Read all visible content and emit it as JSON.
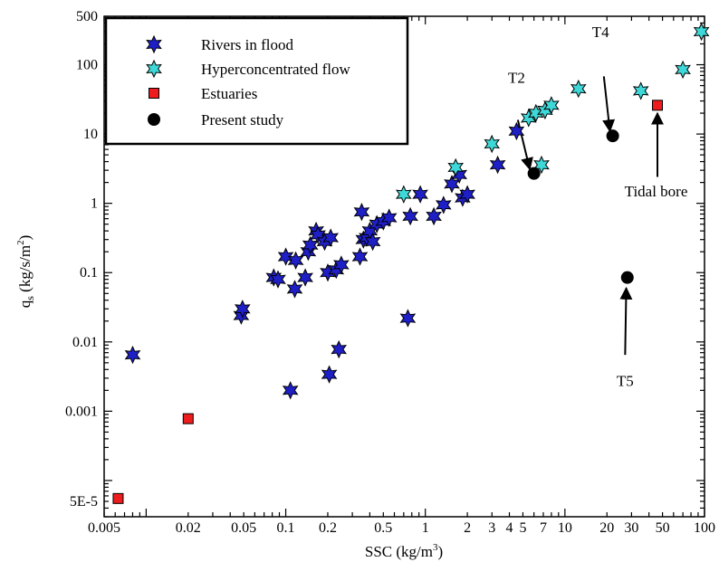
{
  "chart_data": {
    "type": "scatter",
    "x_scale": "log",
    "y_scale": "log",
    "xlim": [
      0.005,
      100
    ],
    "ylim": [
      3e-05,
      500
    ],
    "xlabel": "SSC (kg/m3)",
    "xlabel_main": "SSC (kg/m",
    "xlabel_sup": "3",
    "xlabel_end": ")",
    "ylabel_main": "q",
    "ylabel_sub": "s",
    "ylabel_mid": " (kg/s/m",
    "ylabel_sup": "2",
    "ylabel_end": ")",
    "x_ticks": [
      {
        "v": 0.005,
        "label": "0.005"
      },
      {
        "v": 0.02,
        "label": "0.02"
      },
      {
        "v": 0.05,
        "label": "0.05"
      },
      {
        "v": 0.1,
        "label": "0.1"
      },
      {
        "v": 0.2,
        "label": "0.2"
      },
      {
        "v": 0.5,
        "label": "0.5"
      },
      {
        "v": 1,
        "label": "1"
      },
      {
        "v": 2,
        "label": "2"
      },
      {
        "v": 3,
        "label": "3"
      },
      {
        "v": 4,
        "label": "4"
      },
      {
        "v": 5,
        "label": "5"
      },
      {
        "v": 7,
        "label": "7"
      },
      {
        "v": 10,
        "label": "10"
      },
      {
        "v": 20,
        "label": "20"
      },
      {
        "v": 30,
        "label": "30"
      },
      {
        "v": 50,
        "label": "50"
      },
      {
        "v": 100,
        "label": "100"
      }
    ],
    "y_ticks": [
      {
        "v": 5e-05,
        "label": "5E-5"
      },
      {
        "v": 0.001,
        "label": "0.001"
      },
      {
        "v": 0.01,
        "label": "0.01"
      },
      {
        "v": 0.1,
        "label": "0.1"
      },
      {
        "v": 1,
        "label": "1"
      },
      {
        "v": 10,
        "label": "10"
      },
      {
        "v": 100,
        "label": "100"
      },
      {
        "v": 500,
        "label": "500"
      }
    ],
    "legend_position": "top-left",
    "series": [
      {
        "name": "Rivers in flood",
        "marker": "star",
        "color": "#1f1fc8",
        "points": [
          [
            0.008,
            0.0065
          ],
          [
            0.048,
            0.024
          ],
          [
            0.049,
            0.03
          ],
          [
            0.082,
            0.085
          ],
          [
            0.088,
            0.08
          ],
          [
            0.1,
            0.17
          ],
          [
            0.108,
            0.002
          ],
          [
            0.116,
            0.058
          ],
          [
            0.118,
            0.15
          ],
          [
            0.138,
            0.085
          ],
          [
            0.145,
            0.2
          ],
          [
            0.15,
            0.25
          ],
          [
            0.165,
            0.4
          ],
          [
            0.17,
            0.35
          ],
          [
            0.19,
            0.28
          ],
          [
            0.2,
            0.1
          ],
          [
            0.205,
            0.0034
          ],
          [
            0.21,
            0.32
          ],
          [
            0.23,
            0.11
          ],
          [
            0.24,
            0.0078
          ],
          [
            0.25,
            0.13
          ],
          [
            0.34,
            0.17
          ],
          [
            0.35,
            0.75
          ],
          [
            0.36,
            0.3
          ],
          [
            0.38,
            0.32
          ],
          [
            0.4,
            0.4
          ],
          [
            0.42,
            0.28
          ],
          [
            0.45,
            0.5
          ],
          [
            0.5,
            0.55
          ],
          [
            0.55,
            0.62
          ],
          [
            0.75,
            0.022
          ],
          [
            0.78,
            0.65
          ],
          [
            0.92,
            1.35
          ],
          [
            1.15,
            0.65
          ],
          [
            1.35,
            0.95
          ],
          [
            1.55,
            1.9
          ],
          [
            1.75,
            2.6
          ],
          [
            1.85,
            1.2
          ],
          [
            2.0,
            1.35
          ],
          [
            3.3,
            3.6
          ],
          [
            4.5,
            11
          ]
        ]
      },
      {
        "name": "Hyperconcentrated flow",
        "marker": "star",
        "color": "#3fd8d8",
        "points": [
          [
            0.7,
            1.35
          ],
          [
            1.65,
            3.3
          ],
          [
            3.0,
            7.2
          ],
          [
            5.5,
            17
          ],
          [
            6.2,
            20
          ],
          [
            6.8,
            3.6
          ],
          [
            7.2,
            22
          ],
          [
            8.0,
            26
          ],
          [
            12.5,
            45
          ],
          [
            35,
            42
          ],
          [
            70,
            85
          ],
          [
            95,
            300
          ]
        ]
      },
      {
        "name": "Estuaries",
        "marker": "square",
        "color": "#ee1c1c",
        "points": [
          [
            0.0063,
            5.5e-05
          ],
          [
            0.02,
            0.00078
          ],
          [
            46,
            26
          ]
        ]
      },
      {
        "name": "Present study",
        "marker": "circle",
        "color": "#000000",
        "points": [
          [
            6.0,
            2.7
          ],
          [
            22,
            9.4
          ],
          [
            28,
            0.085
          ]
        ]
      }
    ],
    "annotations": [
      {
        "label": "T2",
        "text_at": [
          4.5,
          55
        ],
        "arrow_from": [
          4.6,
          16
        ],
        "arrow_to": [
          5.6,
          3.1
        ]
      },
      {
        "label": "T4",
        "text_at": [
          18,
          250
        ],
        "arrow_from": [
          19,
          68
        ],
        "arrow_to": [
          21,
          11
        ]
      },
      {
        "label": "Tidal bore",
        "text_at": [
          45,
          1.25
        ],
        "arrow_from": [
          46,
          2.4
        ],
        "arrow_to": [
          46,
          20
        ]
      },
      {
        "label": "T5",
        "text_at": [
          27,
          0.0023
        ],
        "arrow_from": [
          27,
          0.0065
        ],
        "arrow_to": [
          27.5,
          0.06
        ]
      }
    ]
  }
}
